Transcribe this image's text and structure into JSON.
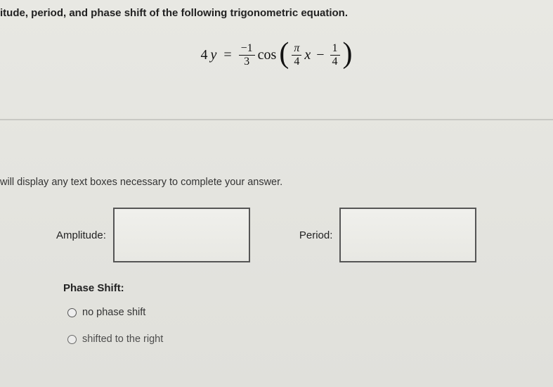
{
  "question": {
    "prompt_text": "itude, period, and phase shift of the following trigonometric equation.",
    "equation": {
      "lhs_coef": "4",
      "lhs_var": "y",
      "equals": "=",
      "amp_frac": {
        "num": "−1",
        "den": "3"
      },
      "func": "cos",
      "inside_frac1": {
        "num": "π",
        "den": "4"
      },
      "inside_var": "x",
      "minus": "−",
      "inside_frac2": {
        "num": "1",
        "den": "4"
      }
    }
  },
  "answer": {
    "hint_text": "will display any text boxes necessary to complete your answer.",
    "amplitude_label": "Amplitude:",
    "amplitude_value": "",
    "period_label": "Period:",
    "period_value": "",
    "phase_shift_title": "Phase Shift:",
    "options": {
      "opt1": "no phase shift",
      "opt2": "shifted to the right"
    }
  },
  "colors": {
    "text": "#222222",
    "border": "#555555",
    "divider": "#c8c8c3",
    "bg_top": "#e8e8e3"
  }
}
